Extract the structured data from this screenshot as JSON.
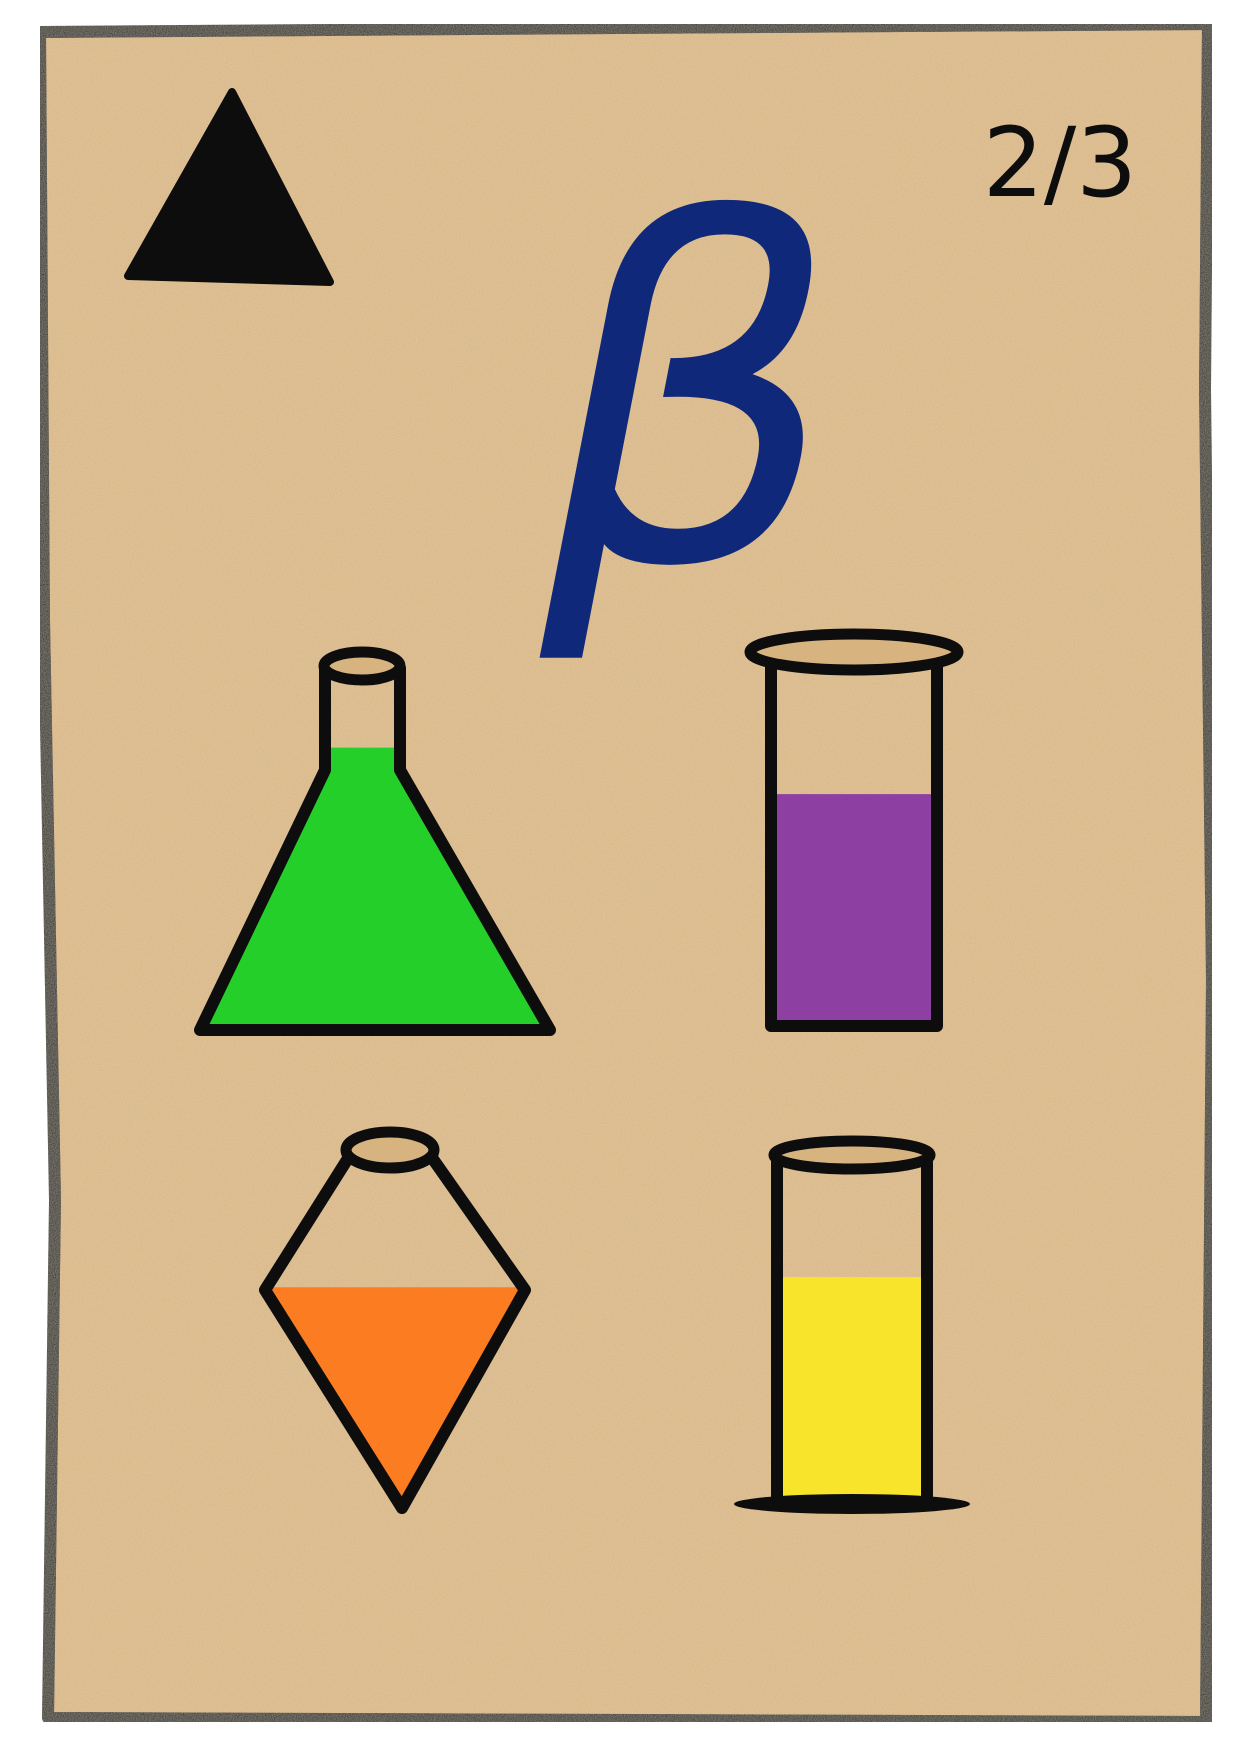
{
  "card": {
    "suit_icon": "triangle-icon",
    "counter": "2/3",
    "symbol": "β",
    "colors": {
      "paper": "#d7b37f",
      "outline": "#0d0d0d",
      "symbol": "#10287a"
    },
    "vessels": [
      {
        "icon": "erlenmeyer-flask-icon",
        "liquid_color": "#25cf2a",
        "fill_level": 0.78
      },
      {
        "icon": "graduated-cylinder-icon",
        "liquid_color": "#8e3fa2",
        "fill_level": 0.62
      },
      {
        "icon": "diamond-flask-icon",
        "liquid_color": "#fc7c22",
        "fill_level": 0.62
      },
      {
        "icon": "test-tube-icon",
        "liquid_color": "#f8e42b",
        "fill_level": 0.65
      }
    ]
  }
}
